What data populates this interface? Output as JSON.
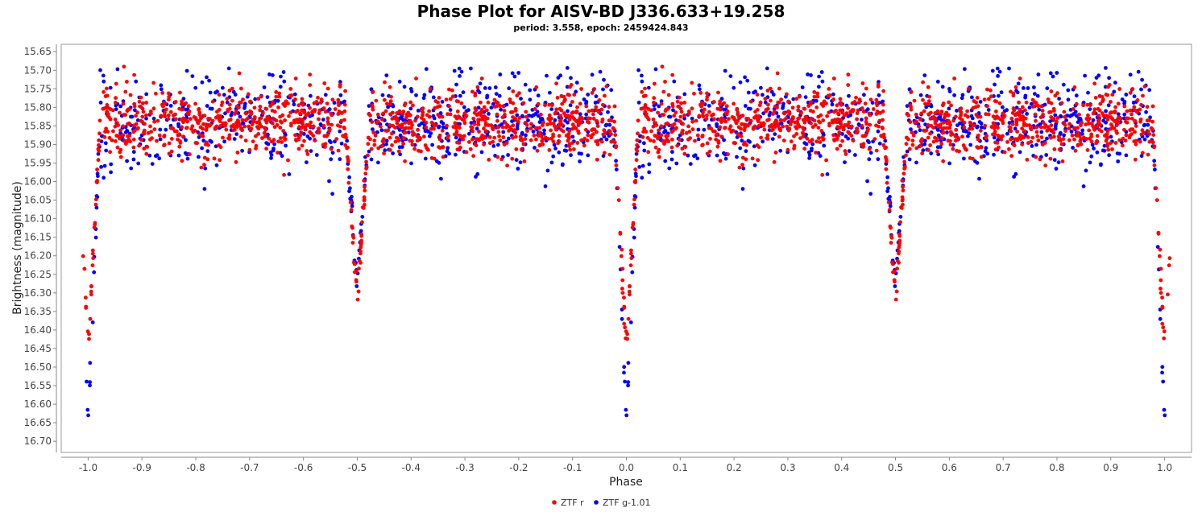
{
  "chart_data": {
    "type": "scatter",
    "title": "Phase Plot for AISV-BD J336.633+19.258",
    "subtitle": "period: 3.558, epoch: 2459424.843",
    "xlabel": "Phase",
    "ylabel": "Brightness (magnitude)",
    "xlim": [
      -1.05,
      1.05
    ],
    "ylim": [
      15.63,
      16.73
    ],
    "y_inverted": true,
    "x_ticks": [
      "-1.0",
      "-0.9",
      "-0.8",
      "-0.7",
      "-0.6",
      "-0.5",
      "-0.4",
      "-0.3",
      "-0.2",
      "-0.1",
      "0.0",
      "0.1",
      "0.2",
      "0.3",
      "0.4",
      "0.5",
      "0.6",
      "0.7",
      "0.8",
      "0.9",
      "1.0"
    ],
    "y_ticks": [
      "15.65",
      "15.70",
      "15.75",
      "15.80",
      "15.85",
      "15.90",
      "15.95",
      "16.00",
      "16.05",
      "16.10",
      "16.15",
      "16.20",
      "16.25",
      "16.30",
      "16.35",
      "16.40",
      "16.45",
      "16.50",
      "16.55",
      "16.60",
      "16.65",
      "16.70"
    ],
    "grid": false,
    "legend_position": "bottom-center",
    "series": [
      {
        "name": "ZTF r",
        "color": "#ff0000",
        "baseline_mag": 15.84,
        "baseline_scatter": 0.045,
        "primary_eclipse": {
          "phase": 0.0,
          "depth_mag": 16.46,
          "half_width": 0.022
        },
        "secondary_eclipse": {
          "phase": 0.5,
          "depth_mag": 16.31,
          "half_width": 0.022
        },
        "points": 1100
      },
      {
        "name": "ZTF g-1.01",
        "color": "#0000ff",
        "baseline_mag": 15.84,
        "baseline_scatter": 0.06,
        "primary_eclipse": {
          "phase": 0.0,
          "depth_mag": 16.66,
          "half_width": 0.022
        },
        "secondary_eclipse": {
          "phase": 0.5,
          "depth_mag": 16.28,
          "half_width": 0.022
        },
        "points": 700
      }
    ]
  }
}
